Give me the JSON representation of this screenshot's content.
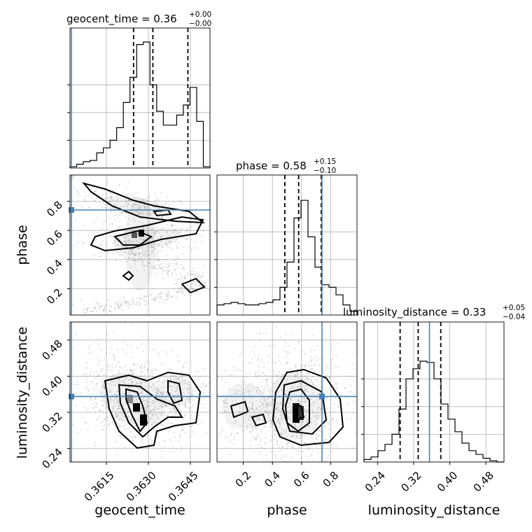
{
  "chart_data": {
    "type": "corner",
    "parameters": [
      "geocent_time",
      "phase",
      "luminosity_distance"
    ],
    "titles": [
      {
        "name": "geocent_time",
        "median": "0.36",
        "plus": "+0.00",
        "minus": "−0.00"
      },
      {
        "name": "phase",
        "median": "0.58",
        "plus": "+0.15",
        "minus": "−0.10"
      },
      {
        "name": "luminosity_distance",
        "median": "0.33",
        "plus": "+0.05",
        "minus": "−0.04"
      }
    ],
    "ranges": [
      [
        0.3602,
        0.3652
      ],
      [
        0.02,
        0.98
      ],
      [
        0.21,
        0.52
      ]
    ],
    "ticks": [
      {
        "values": [
          0.3615,
          0.363,
          0.3645
        ],
        "labels": [
          "0.3615",
          "0.3630",
          "0.3645"
        ]
      },
      {
        "values": [
          0.2,
          0.4,
          0.6,
          0.8
        ],
        "labels": [
          "0.2",
          "0.4",
          "0.6",
          "0.8"
        ]
      },
      {
        "values": [
          0.24,
          0.32,
          0.4,
          0.48
        ],
        "labels": [
          "0.24",
          "0.32",
          "0.40",
          "0.48"
        ]
      }
    ],
    "truths": [
      0.36025,
      0.74,
      0.355
    ],
    "quantiles": [
      [
        0.36247,
        0.36316,
        0.36441
      ],
      [
        0.485,
        0.58,
        0.735
      ],
      [
        0.29,
        0.33,
        0.38
      ]
    ],
    "histograms": [
      [
        0.01,
        0.03,
        0.05,
        0.06,
        0.12,
        0.16,
        0.22,
        0.32,
        0.52,
        0.72,
        0.98,
        1.0,
        0.66,
        0.45,
        0.34,
        0.34,
        0.42,
        0.5,
        0.64,
        0.37,
        0.01
      ],
      [
        0.08,
        0.09,
        0.1,
        0.09,
        0.08,
        0.08,
        0.09,
        0.1,
        0.12,
        0.22,
        0.42,
        0.77,
        0.91,
        0.62,
        0.38,
        0.24,
        0.22,
        0.16,
        0.08,
        0.03
      ],
      [
        0.02,
        0.04,
        0.09,
        0.14,
        0.22,
        0.42,
        0.66,
        0.74,
        0.8,
        0.79,
        0.66,
        0.46,
        0.34,
        0.24,
        0.15,
        0.09,
        0.06,
        0.03,
        0.01,
        0.0
      ]
    ],
    "y_grid_fractions": [
      0.3,
      0.6,
      0.9
    ]
  }
}
